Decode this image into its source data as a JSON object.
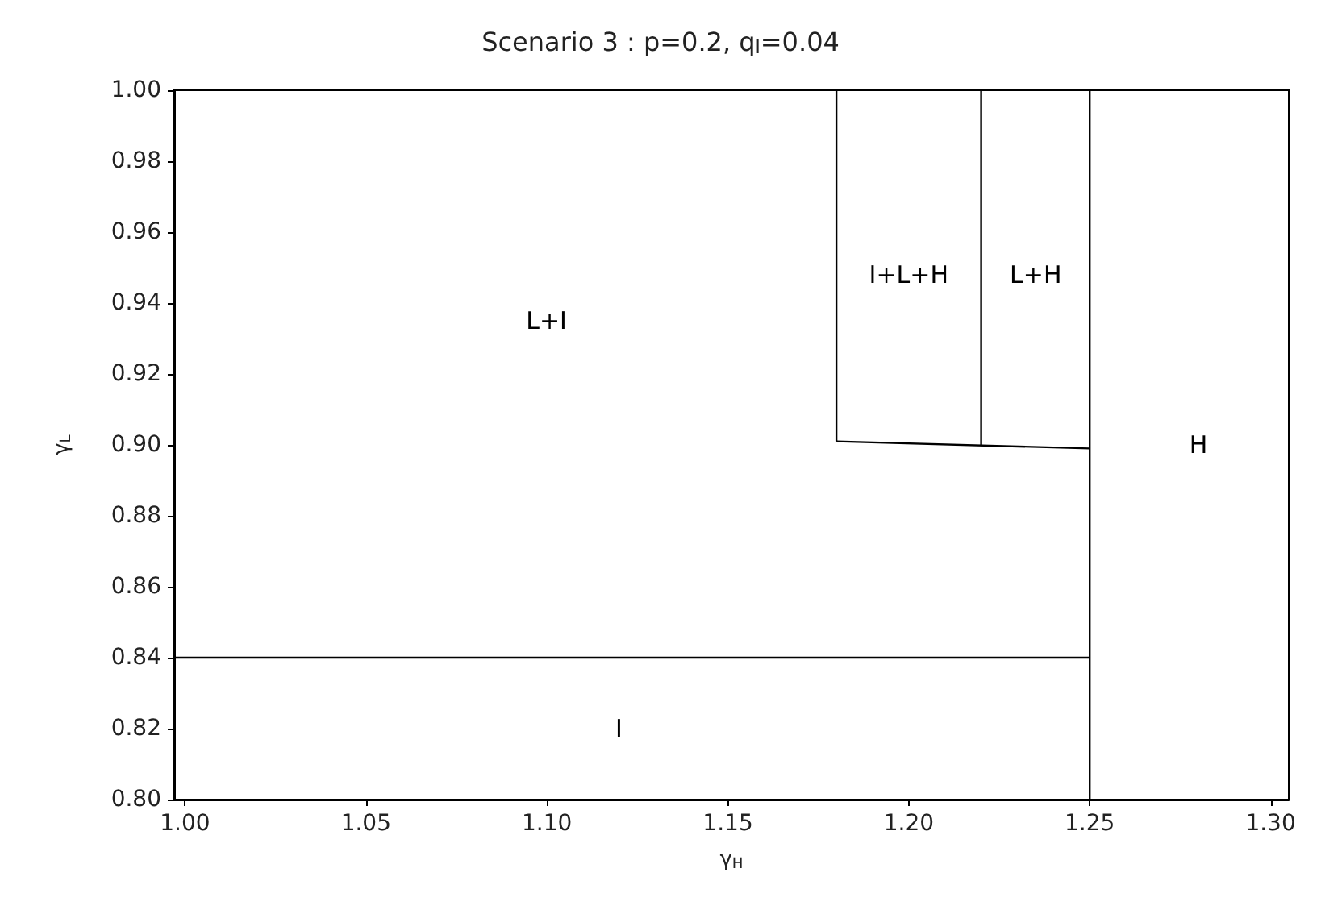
{
  "chart_data": {
    "type": "line",
    "title": "Scenario 3 : p=0.2, q$_{l}$=0.04",
    "xlabel": "γ$_{H}$",
    "ylabel": "γ$_{L}$",
    "xlim": [
      0.997,
      1.305
    ],
    "xticks": [
      {
        "value": 1.0,
        "label": "1.00"
      },
      1.05,
      {
        "value": 1.1,
        "label": "1.10"
      },
      1.15,
      {
        "value": 1.2,
        "label": "1.20"
      },
      1.25,
      {
        "value": 1.3,
        "label": "1.30"
      }
    ],
    "ylim": [
      0.8,
      1.0
    ],
    "yticks": [
      {
        "value": 0.8,
        "label": "0.80"
      },
      0.82,
      0.84,
      0.86,
      0.88,
      {
        "value": 0.9,
        "label": "0.90"
      },
      0.92,
      0.94,
      0.96,
      0.98,
      {
        "value": 1.0,
        "label": "1.00"
      }
    ],
    "grid": false,
    "marker": "none",
    "line_style": "solid",
    "series": [
      {
        "color": "#000000",
        "x": [
          0.997,
          1.25
        ],
        "values": [
          0.84,
          0.84
        ]
      },
      {
        "color": "#000000",
        "x": [
          1.25,
          1.25
        ],
        "values": [
          0.8,
          1.0
        ]
      },
      {
        "color": "#000000",
        "x": [
          1.18,
          1.18
        ],
        "values": [
          0.901,
          1.0
        ]
      },
      {
        "color": "#000000",
        "x": [
          1.18,
          1.25
        ],
        "values": [
          0.901,
          0.899
        ]
      },
      {
        "color": "#000000",
        "x": [
          1.22,
          1.22
        ],
        "values": [
          0.9,
          1.0
        ]
      }
    ],
    "annotations": [
      "L+I",
      "I+L+H",
      "L+H",
      "H",
      "I"
    ]
  }
}
